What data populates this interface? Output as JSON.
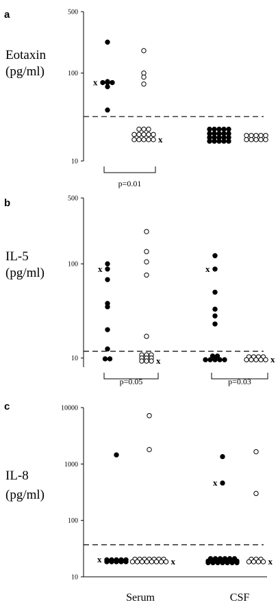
{
  "chart_data": [
    {
      "type": "scatter",
      "panel_label": "a",
      "ylabel_lines": [
        "Eotaxin",
        "(pg/ml)"
      ],
      "y_scale": "log",
      "ylim": [
        10,
        500
      ],
      "yticks": [
        10,
        100,
        500
      ],
      "threshold": 32,
      "groups": [
        {
          "id": "g1",
          "marker": "filled",
          "x_mark": true,
          "points": [
            {
              "y": 225,
              "n": 1
            },
            {
              "y": 78,
              "n": 3
            },
            {
              "y": 70,
              "n": 1
            },
            {
              "y": 80,
              "n": 1
            },
            {
              "y": 38,
              "n": 1
            }
          ]
        },
        {
          "id": "g2",
          "marker": "open",
          "x_mark": true,
          "points": [
            {
              "y": 180,
              "n": 1
            },
            {
              "y": 100,
              "n": 1
            },
            {
              "y": 90,
              "n": 1
            },
            {
              "y": 75,
              "n": 1
            },
            {
              "y": 23,
              "n": 3
            },
            {
              "y": 20,
              "n": 5
            },
            {
              "y": 17.5,
              "n": 5
            }
          ]
        },
        {
          "id": "g3",
          "marker": "filled",
          "x_mark": false,
          "points": [
            {
              "y": 23,
              "n": 5
            },
            {
              "y": 20.5,
              "n": 5
            },
            {
              "y": 18.5,
              "n": 5
            },
            {
              "y": 16.8,
              "n": 5
            }
          ]
        },
        {
          "id": "g4",
          "marker": "open",
          "x_mark": false,
          "points": [
            {
              "y": 19.5,
              "n": 5
            },
            {
              "y": 17.5,
              "n": 5
            }
          ]
        }
      ],
      "pvalues": [
        {
          "label": "p=0.01",
          "from": "g1",
          "to": "g2"
        }
      ]
    },
    {
      "type": "scatter",
      "panel_label": "b",
      "ylabel_lines": [
        "IL-5",
        "(pg/ml)"
      ],
      "y_scale": "log",
      "ylim": [
        8,
        500
      ],
      "yticks": [
        10,
        100,
        500
      ],
      "threshold": 11.8,
      "groups": [
        {
          "id": "g1",
          "marker": "filled",
          "x_mark": true,
          "points": [
            {
              "y": 100,
              "n": 1
            },
            {
              "y": 88,
              "n": 1
            },
            {
              "y": 68,
              "n": 1
            },
            {
              "y": 38,
              "n": 1
            },
            {
              "y": 35,
              "n": 1
            },
            {
              "y": 20,
              "n": 1
            },
            {
              "y": 12.5,
              "n": 1
            },
            {
              "y": 9.8,
              "n": 2
            }
          ]
        },
        {
          "id": "g2",
          "marker": "open",
          "x_mark": true,
          "points": [
            {
              "y": 220,
              "n": 1
            },
            {
              "y": 135,
              "n": 1
            },
            {
              "y": 105,
              "n": 1
            },
            {
              "y": 76,
              "n": 1
            },
            {
              "y": 17,
              "n": 1
            },
            {
              "y": 10.8,
              "n": 3
            },
            {
              "y": 10.0,
              "n": 3
            },
            {
              "y": 9.3,
              "n": 3
            }
          ]
        },
        {
          "id": "g3",
          "marker": "filled",
          "x_mark": true,
          "points": [
            {
              "y": 122,
              "n": 1
            },
            {
              "y": 88,
              "n": 1
            },
            {
              "y": 50,
              "n": 1
            },
            {
              "y": 33,
              "n": 1
            },
            {
              "y": 28,
              "n": 1
            },
            {
              "y": 23,
              "n": 1
            },
            {
              "y": 10.5,
              "n": 2
            },
            {
              "y": 9.6,
              "n": 5
            }
          ]
        },
        {
          "id": "g4",
          "marker": "open",
          "x_mark": true,
          "points": [
            {
              "y": 10.3,
              "n": 4
            },
            {
              "y": 9.6,
              "n": 5
            }
          ]
        }
      ],
      "pvalues": [
        {
          "label": "p=0.05",
          "from": "g1",
          "to": "g2"
        },
        {
          "label": "p=0.03",
          "from": "g3",
          "to": "g4"
        }
      ]
    },
    {
      "type": "scatter",
      "panel_label": "c",
      "ylabel_lines": [
        "IL-8",
        "(pg/ml)"
      ],
      "y_scale": "log",
      "ylim": [
        10,
        10000
      ],
      "yticks": [
        10,
        100,
        1000,
        10000
      ],
      "threshold": 37,
      "groups": [
        {
          "id": "g1",
          "marker": "filled",
          "x_mark": true,
          "points": [
            {
              "y": 1450,
              "n": 1
            },
            {
              "y": 20,
              "n": 5
            },
            {
              "y": 18.5,
              "n": 5
            }
          ]
        },
        {
          "id": "g2",
          "marker": "open",
          "x_mark": true,
          "points": [
            {
              "y": 7200,
              "n": 1
            },
            {
              "y": 1800,
              "n": 1
            },
            {
              "y": 20.5,
              "n": 7
            },
            {
              "y": 18.5,
              "n": 8
            }
          ]
        },
        {
          "id": "g3",
          "marker": "filled",
          "x_mark": true,
          "points": [
            {
              "y": 1350,
              "n": 1
            },
            {
              "y": 460,
              "n": 1
            },
            {
              "y": 21,
              "n": 6
            },
            {
              "y": 19,
              "n": 7
            },
            {
              "y": 17.8,
              "n": 7
            }
          ]
        },
        {
          "id": "g4",
          "marker": "open",
          "x_mark": true,
          "points": [
            {
              "y": 1650,
              "n": 1
            },
            {
              "y": 300,
              "n": 1
            },
            {
              "y": 20.5,
              "n": 3
            },
            {
              "y": 18.5,
              "n": 4
            }
          ]
        }
      ],
      "pvalues": []
    }
  ],
  "categories": [
    "Serum",
    "CSF"
  ],
  "x_symbol": "x",
  "colors": {
    "marker": "#000000",
    "open_fill": "#ffffff",
    "axis": "#000000"
  }
}
